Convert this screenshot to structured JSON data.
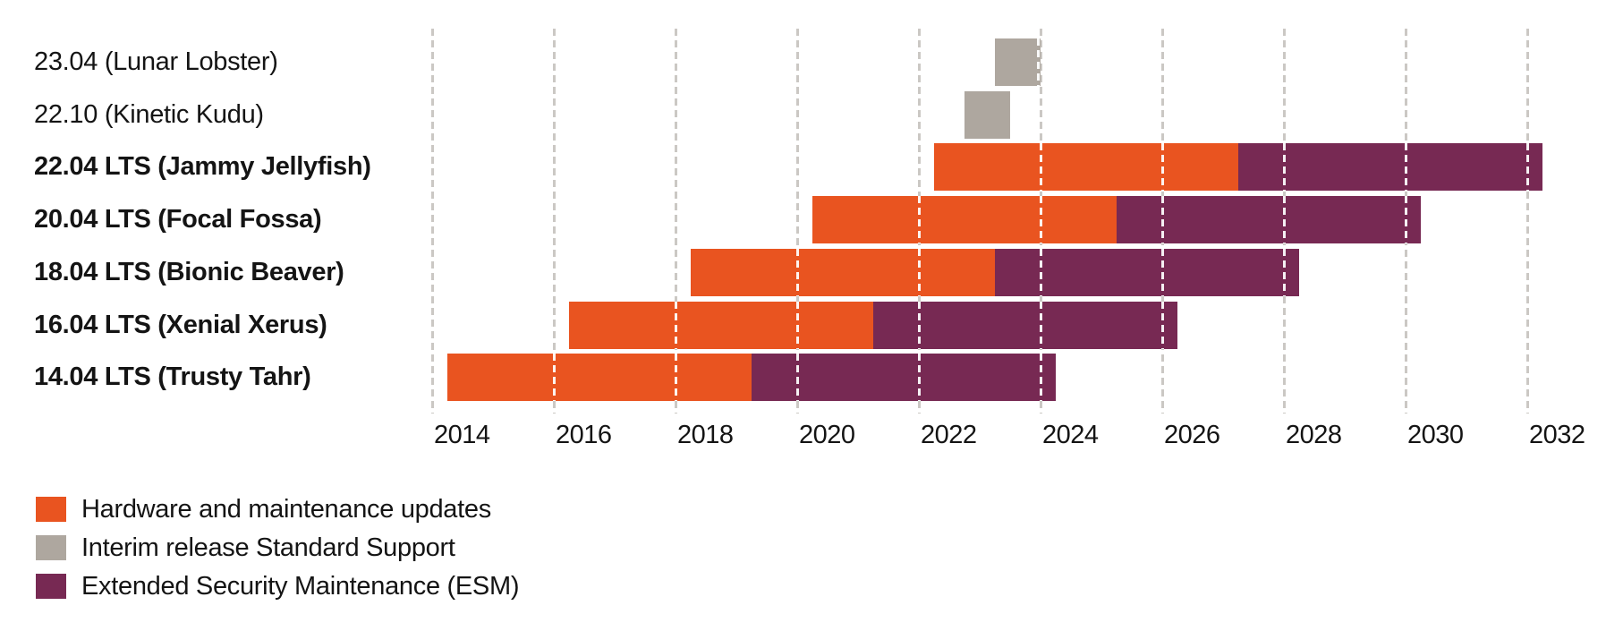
{
  "chart_data": {
    "type": "bar",
    "subtype": "gantt-timeline",
    "title": "",
    "xlabel": "",
    "ylabel": "",
    "axis": {
      "ticks": [
        2014,
        2016,
        2018,
        2020,
        2022,
        2024,
        2026,
        2028,
        2030,
        2032
      ],
      "range": [
        2014,
        2032.25
      ],
      "grid": "dashed-vertical"
    },
    "colors": {
      "hardware": "#E95420",
      "interim": "#AEA79F",
      "esm": "#772953",
      "gridline": "#CBC8C4",
      "text": "#141414"
    },
    "rows": [
      {
        "label": "23.04 (Lunar Lobster)",
        "lts": false,
        "segments": [
          {
            "type": "interim",
            "start": 2023.25,
            "end": 2024.0
          }
        ]
      },
      {
        "label": "22.10 (Kinetic Kudu)",
        "lts": false,
        "segments": [
          {
            "type": "interim",
            "start": 2022.75,
            "end": 2023.5
          }
        ]
      },
      {
        "label": "22.04 LTS (Jammy Jellyfish)",
        "lts": true,
        "segments": [
          {
            "type": "hardware",
            "start": 2022.25,
            "end": 2027.25
          },
          {
            "type": "esm",
            "start": 2027.25,
            "end": 2032.25
          }
        ]
      },
      {
        "label": "20.04 LTS (Focal Fossa)",
        "lts": true,
        "segments": [
          {
            "type": "hardware",
            "start": 2020.25,
            "end": 2025.25
          },
          {
            "type": "esm",
            "start": 2025.25,
            "end": 2030.25
          }
        ]
      },
      {
        "label": "18.04 LTS (Bionic Beaver)",
        "lts": true,
        "segments": [
          {
            "type": "hardware",
            "start": 2018.25,
            "end": 2023.25
          },
          {
            "type": "esm",
            "start": 2023.25,
            "end": 2028.25
          }
        ]
      },
      {
        "label": "16.04 LTS (Xenial Xerus)",
        "lts": true,
        "segments": [
          {
            "type": "hardware",
            "start": 2016.25,
            "end": 2021.25
          },
          {
            "type": "esm",
            "start": 2021.25,
            "end": 2026.25
          }
        ]
      },
      {
        "label": "14.04 LTS (Trusty Tahr)",
        "lts": true,
        "segments": [
          {
            "type": "hardware",
            "start": 2014.25,
            "end": 2019.25
          },
          {
            "type": "esm",
            "start": 2019.25,
            "end": 2024.25
          }
        ]
      }
    ],
    "legend": [
      {
        "key": "hardware",
        "label": "Hardware and maintenance updates",
        "color": "#E95420"
      },
      {
        "key": "interim",
        "label": "Interim release Standard Support",
        "color": "#AEA79F"
      },
      {
        "key": "esm",
        "label": "Extended Security Maintenance (ESM)",
        "color": "#772953"
      }
    ]
  }
}
